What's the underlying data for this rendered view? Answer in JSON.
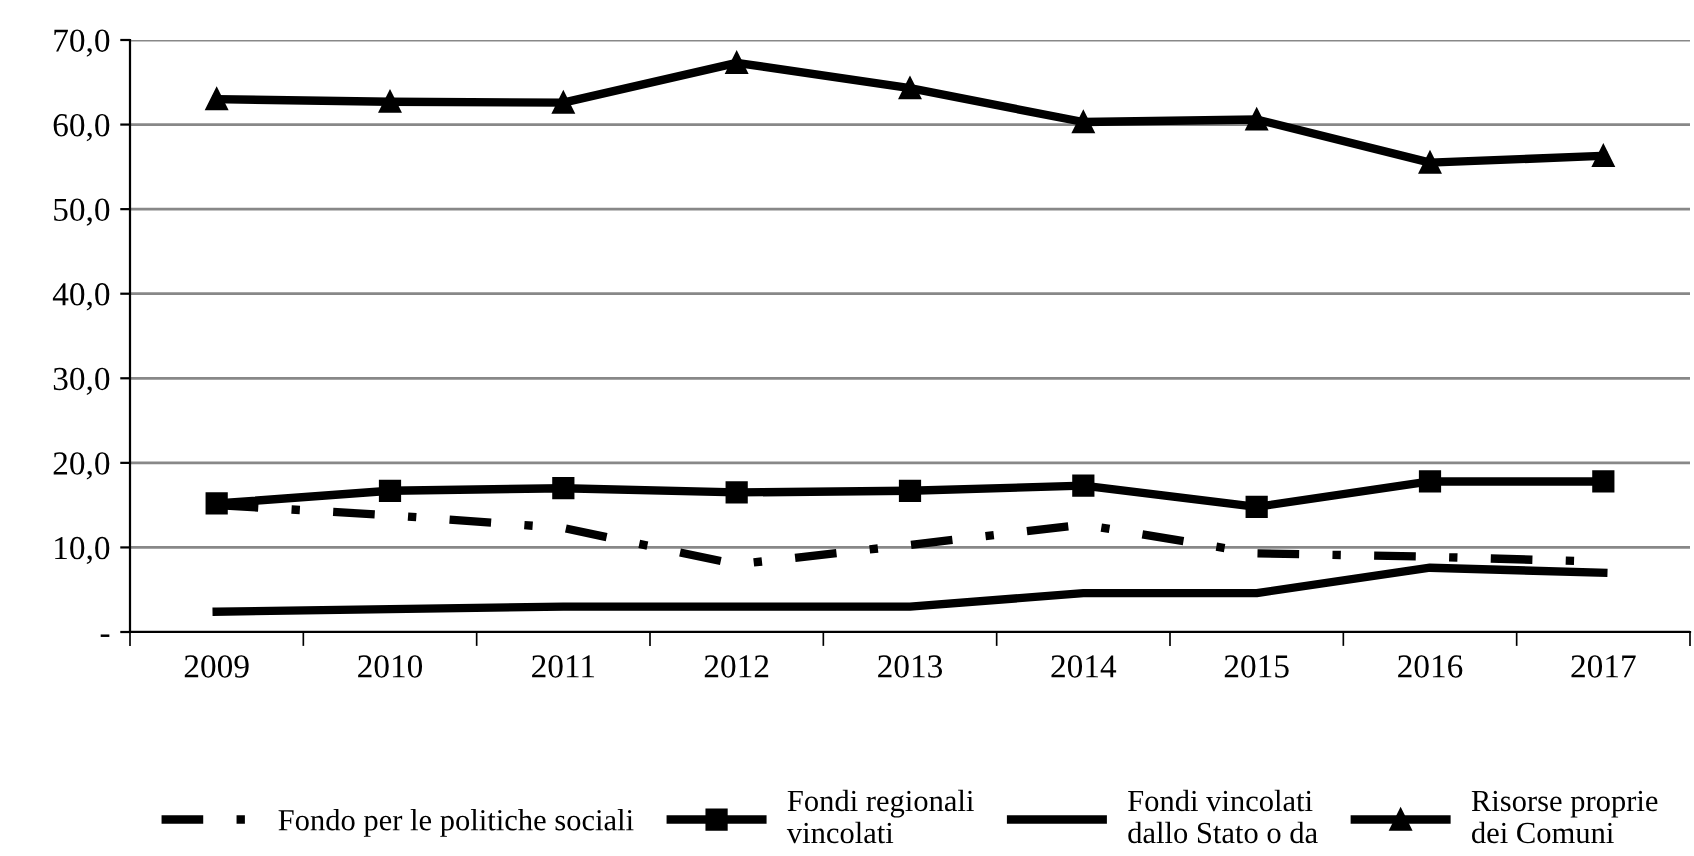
{
  "chart_data": {
    "type": "line",
    "categories": [
      "2009",
      "2010",
      "2011",
      "2012",
      "2013",
      "2014",
      "2015",
      "2016",
      "2017"
    ],
    "series": [
      {
        "name": "Fondo per le politiche sociali",
        "color": "#000000",
        "line_style": "dashdot",
        "marker": "none",
        "values": [
          15.0,
          13.8,
          12.3,
          8.0,
          10.3,
          12.7,
          9.3,
          8.9,
          8.3
        ]
      },
      {
        "name": "Fondi regionali\nvincolati",
        "color": "#000000",
        "line_style": "solid",
        "marker": "square",
        "values": [
          15.2,
          16.7,
          17.0,
          16.5,
          16.7,
          17.3,
          14.8,
          17.8,
          17.8
        ]
      },
      {
        "name": "Fondi vincolati\ndallo Stato o da",
        "color": "#000000",
        "line_style": "solid",
        "marker": "none",
        "values": [
          2.4,
          2.7,
          3.0,
          3.0,
          3.0,
          4.6,
          4.6,
          7.6,
          7.0
        ]
      },
      {
        "name": "Risorse proprie\ndei Comuni",
        "color": "#000000",
        "line_style": "solid",
        "marker": "triangle",
        "values": [
          63.0,
          62.7,
          62.6,
          67.3,
          64.3,
          60.3,
          60.6,
          55.5,
          56.3
        ]
      }
    ],
    "ylim": [
      0,
      70
    ],
    "yticks": [
      {
        "value": 0,
        "label": "-"
      },
      {
        "value": 10,
        "label": "10,0"
      },
      {
        "value": 20,
        "label": "20,0"
      },
      {
        "value": 30,
        "label": "30,0"
      },
      {
        "value": 40,
        "label": "40,0"
      },
      {
        "value": 50,
        "label": "50,0"
      },
      {
        "value": 60,
        "label": "60,0"
      },
      {
        "value": 70,
        "label": "70,0"
      }
    ],
    "grid": "y",
    "legend": "bottom"
  }
}
